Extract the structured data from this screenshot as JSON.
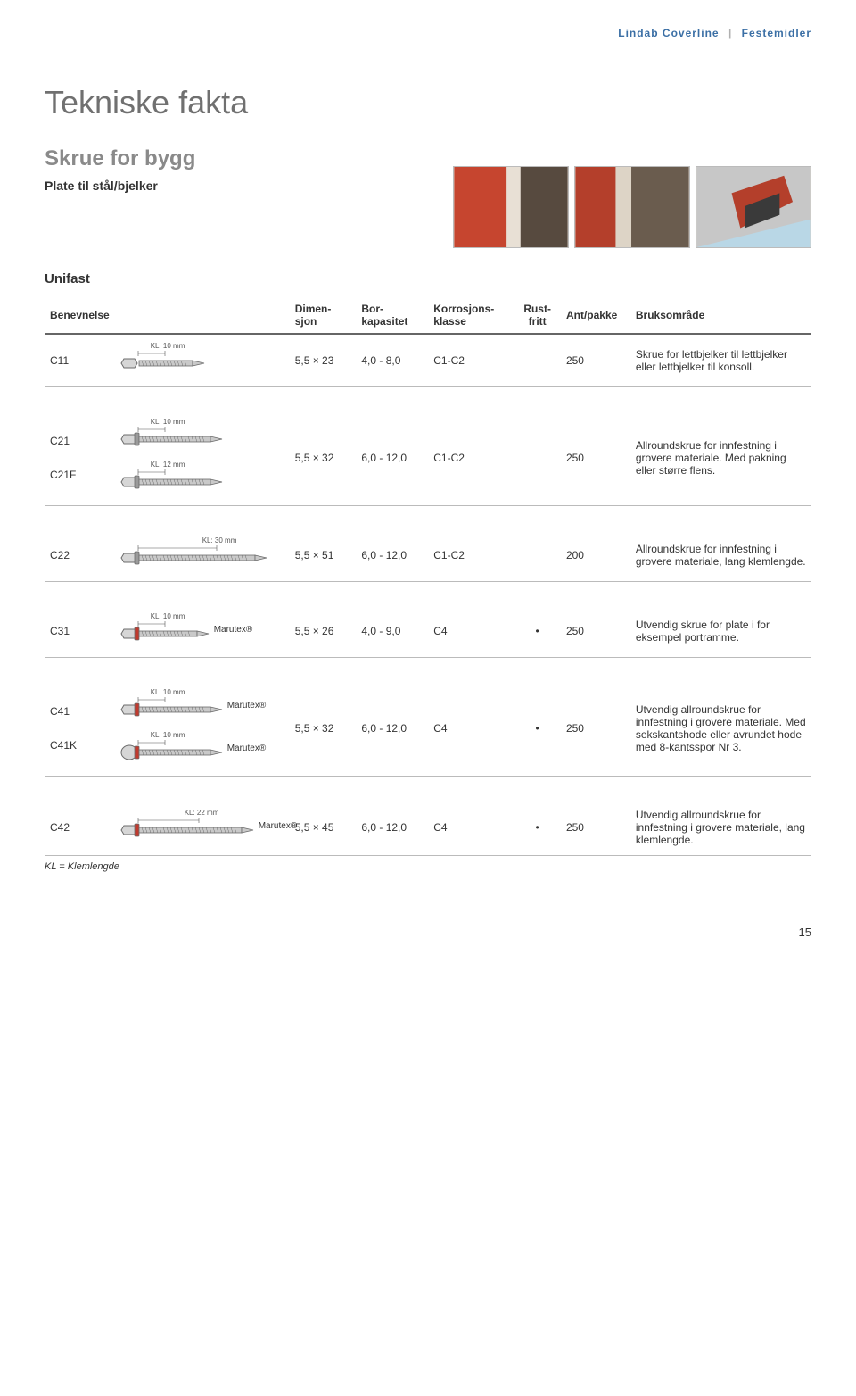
{
  "header": {
    "brand": "Lindab Coverline",
    "section": "Festemidler"
  },
  "titles": {
    "main": "Tekniske fakta",
    "sub": "Skrue for bygg",
    "plate": "Plate til stål/bjelker",
    "unifast": "Unifast"
  },
  "columns": {
    "benevnelse": "Benevnelse",
    "dimensjon": "Dimen-\nsjon",
    "borkapasitet": "Bor-\nkapasitet",
    "korrosjons": "Korrosjons-\nklasse",
    "rustfritt": "Rust-\nfritt",
    "antpakke": "Ant/pakke",
    "bruksomrade": "Bruksområde"
  },
  "rows": [
    {
      "id": "C11",
      "kl": [
        "KL: 10 mm"
      ],
      "dim": "5,5 × 23",
      "bor": "4,0 - 8,0",
      "kor": "C1-C2",
      "rust": "",
      "ant": "250",
      "bruk": "Skrue for lettbjelker til lettbjelker eller lettbjelker til konsoll.",
      "marutex": [],
      "screws": 1,
      "shape": "hex-plain"
    },
    {
      "id": "C21",
      "id2": "C21F",
      "kl": [
        "KL: 10 mm",
        "KL: 12 mm"
      ],
      "dim": "5,5 × 32",
      "bor": "6,0 - 12,0",
      "kor": "C1-C2",
      "rust": "",
      "ant": "250",
      "bruk": "Allroundskrue for innfestning i grovere materiale. Med pakning eller større flens.",
      "marutex": [],
      "screws": 2,
      "shape": "hex-flange"
    },
    {
      "id": "C22",
      "kl": [
        "KL: 30 mm"
      ],
      "dim": "5,5 × 51",
      "bor": "6,0 - 12,0",
      "kor": "C1-C2",
      "rust": "",
      "ant": "200",
      "bruk": "Allroundskrue for innfestning i grovere materiale, lang klemlengde.",
      "marutex": [],
      "screws": 1,
      "shape": "hex-long"
    },
    {
      "id": "C31",
      "kl": [
        "KL: 10 mm"
      ],
      "dim": "5,5 × 26",
      "bor": "4,0 - 9,0",
      "kor": "C4",
      "rust": "•",
      "ant": "250",
      "bruk": "Utvendig skrue for plate i for eksempel portramme.",
      "marutex": [
        "Marutex®"
      ],
      "screws": 1,
      "shape": "hex-red"
    },
    {
      "id": "C41",
      "id2": "C41K",
      "kl": [
        "KL: 10 mm",
        "KL: 10 mm"
      ],
      "dim": "5,5 × 32",
      "bor": "6,0 - 12,0",
      "kor": "C4",
      "rust": "•",
      "ant": "250",
      "bruk": "Utvendig allroundskrue for innfestning i grovere materiale. Med sekskantshode eller avrundet hode med 8-kantsspor Nr 3.",
      "marutex": [
        "Marutex®",
        "Marutex®"
      ],
      "screws": 2,
      "shape": "hex-red-pair"
    },
    {
      "id": "C42",
      "kl": [
        "KL: 22 mm"
      ],
      "dim": "5,5 × 45",
      "bor": "6,0 - 12,0",
      "kor": "C4",
      "rust": "•",
      "ant": "250",
      "bruk": "Utvendig allroundskrue for innfestning i grovere materiale, lang klemlengde.",
      "marutex": [
        "Marutex®"
      ],
      "screws": 1,
      "shape": "hex-red-long"
    }
  ],
  "footnote": "KL = Klemlengde",
  "page": "15",
  "style": {
    "screw_colors": {
      "body": "#c9c9c9",
      "outline": "#6b6b6b",
      "washer_red": "#c13a2e",
      "washer_gray": "#9a9a9a",
      "head": "#d6d6d6"
    },
    "hline": "#bbbbbb",
    "img_bg": "#d8d0c6"
  }
}
